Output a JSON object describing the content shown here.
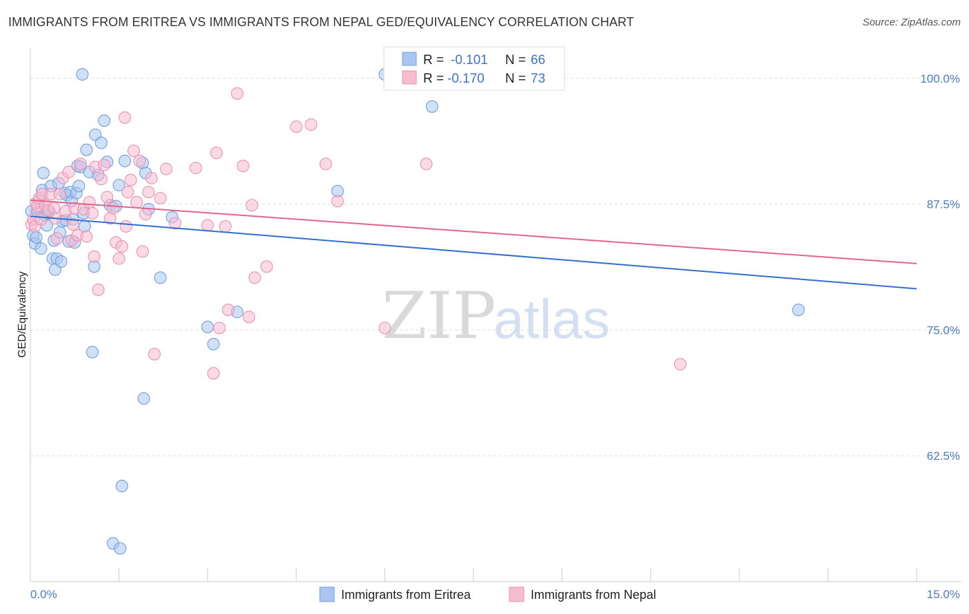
{
  "title": "IMMIGRANTS FROM ERITREA VS IMMIGRANTS FROM NEPAL GED/EQUIVALENCY CORRELATION CHART",
  "source": "Source: ZipAtlas.com",
  "watermark": {
    "zip": "ZIP",
    "atlas": "atlas"
  },
  "legend": {
    "r_label": "R =",
    "n_label": "N =",
    "entries": [
      {
        "r": "-0.101",
        "n": "66",
        "color": "#aac6f0",
        "stroke": "#6f9fe0"
      },
      {
        "r": "-0.170",
        "n": "73",
        "color": "#f7bcd0",
        "stroke": "#ec91b2"
      }
    ]
  },
  "chart_data": {
    "type": "scatter",
    "ylabel": "GED/Equivalency",
    "xlabel": "",
    "xlim": [
      0,
      15
    ],
    "ylim": [
      50,
      103
    ],
    "x_tick_labels": [
      {
        "value": 0,
        "label": "0.0%"
      },
      {
        "value": 15,
        "label": "15.0%"
      }
    ],
    "y_tick_labels": [
      {
        "value": 100,
        "label": "100.0%"
      },
      {
        "value": 87.5,
        "label": "87.5%"
      },
      {
        "value": 75,
        "label": "75.0%"
      },
      {
        "value": 62.5,
        "label": "62.5%"
      }
    ],
    "grid": true,
    "legend_position": "top-center",
    "series": [
      {
        "name": "Immigrants from Eritrea",
        "color": "#aac6f0",
        "stroke": "#6f9fe0",
        "trend_color": "#2f6fcf",
        "trend": {
          "x": [
            0,
            15
          ],
          "y": [
            86.3,
            79.1
          ]
        },
        "points": [
          [
            0.02,
            86.8
          ],
          [
            0.05,
            84.4
          ],
          [
            0.08,
            83.6
          ],
          [
            0.1,
            84.2
          ],
          [
            0.12,
            86.8
          ],
          [
            0.15,
            87.8
          ],
          [
            0.18,
            83.1
          ],
          [
            0.2,
            88.9
          ],
          [
            0.22,
            90.6
          ],
          [
            0.25,
            86.4
          ],
          [
            0.28,
            85.4
          ],
          [
            0.3,
            86.6
          ],
          [
            0.32,
            86.8
          ],
          [
            0.35,
            89.3
          ],
          [
            0.38,
            82.1
          ],
          [
            0.4,
            83.9
          ],
          [
            0.42,
            81.0
          ],
          [
            0.45,
            82.1
          ],
          [
            0.48,
            89.6
          ],
          [
            0.5,
            84.7
          ],
          [
            0.52,
            81.8
          ],
          [
            0.55,
            85.8
          ],
          [
            0.58,
            88.6
          ],
          [
            0.6,
            85.9
          ],
          [
            0.62,
            88.4
          ],
          [
            0.65,
            83.8
          ],
          [
            0.68,
            88.7
          ],
          [
            0.7,
            87.8
          ],
          [
            0.72,
            86.0
          ],
          [
            0.75,
            83.7
          ],
          [
            0.78,
            88.6
          ],
          [
            0.8,
            91.3
          ],
          [
            0.82,
            89.3
          ],
          [
            0.85,
            91.2
          ],
          [
            0.88,
            100.4
          ],
          [
            0.9,
            86.6
          ],
          [
            0.92,
            85.3
          ],
          [
            0.95,
            92.9
          ],
          [
            1.0,
            90.7
          ],
          [
            1.05,
            72.8
          ],
          [
            1.08,
            81.3
          ],
          [
            1.1,
            94.4
          ],
          [
            1.15,
            90.4
          ],
          [
            1.2,
            93.6
          ],
          [
            1.25,
            95.8
          ],
          [
            1.3,
            91.7
          ],
          [
            1.35,
            87.4
          ],
          [
            1.4,
            53.8
          ],
          [
            1.45,
            87.3
          ],
          [
            1.5,
            89.4
          ],
          [
            1.52,
            53.3
          ],
          [
            1.55,
            59.5
          ],
          [
            1.6,
            91.8
          ],
          [
            1.9,
            91.6
          ],
          [
            1.92,
            68.2
          ],
          [
            1.95,
            90.6
          ],
          [
            2.0,
            87.0
          ],
          [
            2.2,
            80.2
          ],
          [
            2.4,
            86.2
          ],
          [
            3.0,
            75.3
          ],
          [
            3.1,
            73.6
          ],
          [
            3.5,
            76.8
          ],
          [
            5.2,
            88.8
          ],
          [
            6.0,
            100.4
          ],
          [
            6.8,
            97.2
          ],
          [
            13.0,
            77.0
          ]
        ]
      },
      {
        "name": "Immigrants from Nepal",
        "color": "#f7bcd0",
        "stroke": "#ec91b2",
        "trend_color": "#e0648e",
        "trend": {
          "x": [
            0,
            15
          ],
          "y": [
            87.9,
            81.6
          ]
        },
        "points": [
          [
            0.02,
            85.5
          ],
          [
            0.05,
            86.0
          ],
          [
            0.08,
            85.3
          ],
          [
            0.1,
            87.6
          ],
          [
            0.12,
            87.3
          ],
          [
            0.15,
            88.1
          ],
          [
            0.18,
            86.0
          ],
          [
            0.2,
            88.5
          ],
          [
            0.25,
            87.4
          ],
          [
            0.3,
            86.9
          ],
          [
            0.35,
            88.5
          ],
          [
            0.4,
            87.1
          ],
          [
            0.42,
            86.1
          ],
          [
            0.45,
            84.1
          ],
          [
            0.5,
            88.5
          ],
          [
            0.55,
            90.1
          ],
          [
            0.6,
            86.8
          ],
          [
            0.65,
            90.7
          ],
          [
            0.7,
            83.9
          ],
          [
            0.72,
            85.5
          ],
          [
            0.75,
            87.1
          ],
          [
            0.8,
            84.4
          ],
          [
            0.85,
            91.5
          ],
          [
            0.9,
            87.0
          ],
          [
            0.95,
            84.3
          ],
          [
            1.0,
            87.7
          ],
          [
            1.05,
            86.6
          ],
          [
            1.08,
            82.3
          ],
          [
            1.1,
            91.2
          ],
          [
            1.15,
            79.0
          ],
          [
            1.2,
            90.0
          ],
          [
            1.25,
            91.4
          ],
          [
            1.3,
            88.2
          ],
          [
            1.35,
            86.1
          ],
          [
            1.4,
            87.1
          ],
          [
            1.45,
            83.7
          ],
          [
            1.5,
            82.1
          ],
          [
            1.55,
            83.3
          ],
          [
            1.6,
            96.1
          ],
          [
            1.62,
            85.3
          ],
          [
            1.65,
            88.7
          ],
          [
            1.7,
            89.9
          ],
          [
            1.75,
            92.8
          ],
          [
            1.8,
            87.7
          ],
          [
            1.85,
            91.8
          ],
          [
            1.9,
            82.8
          ],
          [
            1.95,
            86.5
          ],
          [
            2.0,
            88.7
          ],
          [
            2.05,
            90.1
          ],
          [
            2.1,
            72.6
          ],
          [
            2.2,
            88.1
          ],
          [
            2.3,
            91.0
          ],
          [
            2.45,
            85.6
          ],
          [
            2.8,
            91.1
          ],
          [
            3.0,
            85.4
          ],
          [
            3.1,
            70.7
          ],
          [
            3.15,
            92.6
          ],
          [
            3.2,
            75.2
          ],
          [
            3.3,
            85.3
          ],
          [
            3.35,
            77.0
          ],
          [
            3.5,
            98.5
          ],
          [
            3.6,
            91.3
          ],
          [
            3.7,
            76.3
          ],
          [
            3.75,
            87.4
          ],
          [
            3.8,
            80.2
          ],
          [
            4.0,
            81.3
          ],
          [
            4.5,
            95.2
          ],
          [
            4.75,
            95.4
          ],
          [
            5.0,
            91.5
          ],
          [
            5.2,
            87.8
          ],
          [
            6.0,
            75.2
          ],
          [
            6.7,
            91.5
          ],
          [
            11.0,
            71.6
          ]
        ]
      }
    ]
  }
}
